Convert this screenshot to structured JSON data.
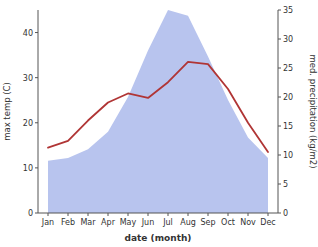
{
  "chart_data": {
    "type": "line",
    "categories": [
      "Jan",
      "Feb",
      "Mar",
      "Apr",
      "May",
      "Jun",
      "Jul",
      "Aug",
      "Sep",
      "Oct",
      "Nov",
      "Dec"
    ],
    "series": [
      {
        "type": "area",
        "axis": "y2",
        "color": "#b8c4ee",
        "values": [
          9.0,
          9.5,
          11.0,
          14.0,
          20.0,
          28.0,
          35.0,
          34.0,
          27.0,
          19.5,
          13.0,
          9.5
        ]
      },
      {
        "type": "line",
        "color": "#b03535",
        "values": [
          14.5,
          16.0,
          20.5,
          24.5,
          26.5,
          25.5,
          29.0,
          33.5,
          33.0,
          27.5,
          20.0,
          13.5
        ]
      }
    ],
    "xlabel": "date (month)",
    "ylabel": "max temp (C)",
    "y2label": "med. precipitation (kg/m2)",
    "ylim": [
      0,
      45
    ],
    "yticks": [
      0,
      10,
      20,
      30,
      40
    ],
    "y2lim": [
      0,
      35
    ],
    "y2ticks": [
      0,
      5,
      10,
      15,
      20,
      25,
      30,
      35
    ],
    "grid": false
  }
}
